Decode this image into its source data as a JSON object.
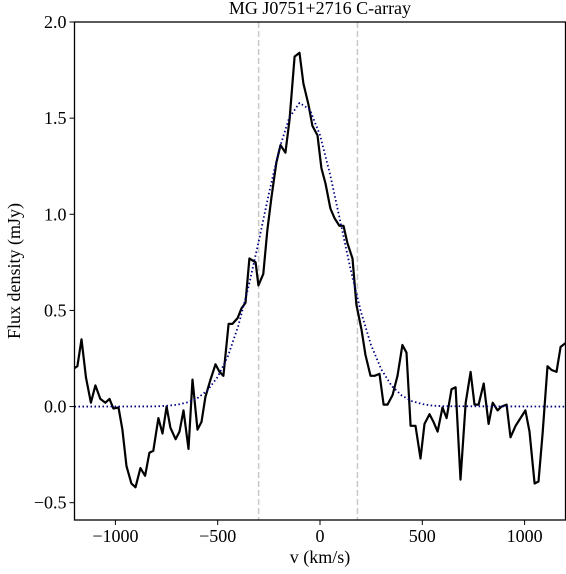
{
  "chart_data": {
    "type": "line",
    "title": "MG J0751+2716 C-array",
    "xlabel": "v (km/s)",
    "ylabel": "Flux density (mJy)",
    "xlim": [
      -1200,
      1200
    ],
    "ylim": [
      -0.59,
      2.0
    ],
    "xticks": [
      {
        "value": -1000,
        "label": "−1000"
      },
      {
        "value": -500,
        "label": "−500"
      },
      0,
      500,
      1000
    ],
    "yticks": [
      {
        "value": -0.5,
        "label": "−0.5"
      },
      {
        "value": 0,
        "label": "0.0"
      },
      0.5,
      {
        "value": 1,
        "label": "1.0"
      },
      1.5,
      {
        "value": 2,
        "label": "2.0"
      }
    ],
    "vlines": {
      "x": [
        -300,
        183
      ],
      "color": "#c8c8c8"
    },
    "series": [
      {
        "color": "#000000",
        "linestyle": "solid",
        "x": [
          -1200,
          -1186,
          -1166,
          -1144,
          -1120,
          -1098,
          -1074,
          -1049,
          -1029,
          -1010,
          -985,
          -966,
          -946,
          -922,
          -902,
          -878,
          -855,
          -834,
          -815,
          -790,
          -770,
          -750,
          -731,
          -706,
          -687,
          -667,
          -643,
          -623,
          -599,
          -579,
          -560,
          -535,
          -511,
          -491,
          -472,
          -447,
          -428,
          -403,
          -384,
          -364,
          -345,
          -315,
          -301,
          -277,
          -257,
          -237,
          -213,
          -193,
          -169,
          -149,
          -124,
          -100,
          -81,
          -56,
          -37,
          -12,
          7,
          27,
          51,
          71,
          95,
          115,
          134,
          159,
          178,
          203,
          222,
          247,
          267,
          291,
          311,
          330,
          355,
          379,
          403,
          423,
          443,
          467,
          491,
          511,
          535,
          555,
          575,
          599,
          619,
          643,
          663,
          687,
          712,
          736,
          755,
          775,
          800,
          824,
          844,
          868,
          887,
          912,
          931,
          956,
          980,
          1004,
          1024,
          1049,
          1068,
          1088,
          1112,
          1132,
          1156,
          1176,
          1200
        ],
        "values": [
          0.2,
          0.21,
          0.35,
          0.15,
          0.02,
          0.11,
          0.04,
          0.02,
          0.04,
          -0.01,
          -0.005,
          -0.12,
          -0.31,
          -0.4,
          -0.42,
          -0.32,
          -0.36,
          -0.24,
          -0.23,
          -0.06,
          -0.14,
          0.0,
          -0.11,
          -0.17,
          -0.13,
          -0.02,
          -0.22,
          0.14,
          -0.12,
          -0.08,
          0.05,
          0.14,
          0.22,
          0.18,
          0.16,
          0.43,
          0.43,
          0.46,
          0.51,
          0.54,
          0.77,
          0.75,
          0.63,
          0.69,
          0.92,
          1.09,
          1.27,
          1.36,
          1.32,
          1.49,
          1.82,
          1.84,
          1.68,
          1.57,
          1.46,
          1.41,
          1.24,
          1.16,
          1.03,
          0.98,
          0.94,
          0.94,
          0.85,
          0.77,
          0.53,
          0.4,
          0.27,
          0.16,
          0.16,
          0.17,
          0.01,
          0.01,
          0.06,
          0.16,
          0.32,
          0.28,
          -0.1,
          -0.1,
          -0.27,
          -0.09,
          -0.04,
          -0.08,
          -0.13,
          -0.005,
          -0.06,
          0.09,
          0.1,
          -0.38,
          0.02,
          0.18,
          0.01,
          0.01,
          0.12,
          -0.09,
          0.02,
          -0.02,
          0.0,
          0.01,
          -0.16,
          -0.1,
          -0.06,
          -0.02,
          -0.13,
          -0.4,
          -0.39,
          -0.14,
          0.21,
          0.19,
          0.18,
          0.31,
          0.33
        ]
      },
      {
        "color": "#000080",
        "linestyle": "dotted",
        "x": [
          -1200,
          -800,
          -750,
          -700,
          -650,
          -600,
          -550,
          -500,
          -450,
          -400,
          -350,
          -300,
          -250,
          -200,
          -150,
          -100,
          -50,
          0,
          50,
          100,
          150,
          200,
          250,
          300,
          350,
          400,
          450,
          500,
          550,
          600,
          1200
        ],
        "values": [
          0,
          0.001,
          0.004,
          0.009,
          0.021,
          0.043,
          0.084,
          0.154,
          0.262,
          0.418,
          0.62,
          0.857,
          1.108,
          1.336,
          1.503,
          1.579,
          1.545,
          1.412,
          1.205,
          0.958,
          0.711,
          0.493,
          0.319,
          0.192,
          0.108,
          0.057,
          0.028,
          0.013,
          0.005,
          0.002,
          0
        ]
      }
    ]
  }
}
